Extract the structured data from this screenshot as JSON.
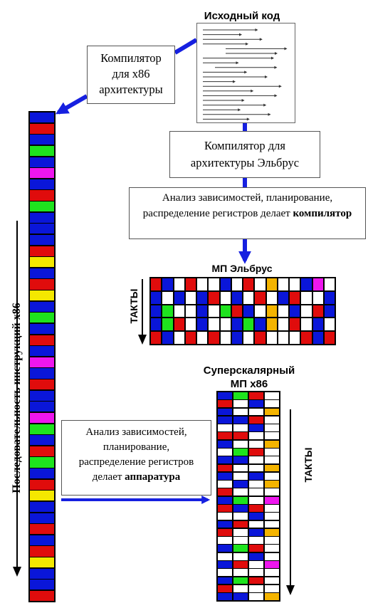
{
  "colors": {
    "blue": "#0a16d9",
    "red": "#e00c0c",
    "green": "#1ee31e",
    "magenta": "#ee16ee",
    "yellow": "#f4e800",
    "orange": "#f4b400",
    "white": "#ffffff",
    "arrow": "#1620e0"
  },
  "source": {
    "title": "Исходный код"
  },
  "x86_compiler": {
    "label": "Компилятор для x86 архитектуры"
  },
  "elbrus_compiler": {
    "label": "Компилятор для архитектуры Эльбрус"
  },
  "compiler_analysis": {
    "text": "Анализ зависимостей, планирование, распределение регистров делает",
    "bold": "компилятор"
  },
  "elbrus_mp": {
    "title": "МП Эльбрус",
    "axis_label": "ТАКТЫ",
    "grid": [
      [
        "red",
        "blue",
        "white",
        "red",
        "white",
        "white",
        "blue",
        "white",
        "red",
        "white",
        "orange",
        "white",
        "white",
        "blue",
        "magenta",
        "white"
      ],
      [
        "blue",
        "white",
        "blue",
        "white",
        "blue",
        "red",
        "white",
        "blue",
        "white",
        "red",
        "white",
        "blue",
        "red",
        "white",
        "white",
        "blue"
      ],
      [
        "blue",
        "green",
        "white",
        "white",
        "blue",
        "white",
        "green",
        "red",
        "blue",
        "white",
        "orange",
        "white",
        "blue",
        "white",
        "red",
        "blue"
      ],
      [
        "blue",
        "green",
        "red",
        "white",
        "blue",
        "white",
        "white",
        "blue",
        "green",
        "blue",
        "orange",
        "white",
        "red",
        "white",
        "blue",
        "white"
      ],
      [
        "red",
        "blue",
        "white",
        "red",
        "white",
        "red",
        "white",
        "blue",
        "white",
        "red",
        "white",
        "white",
        "white",
        "red",
        "blue",
        "red"
      ]
    ]
  },
  "x86_seq": {
    "axis_label": "Последовательность инструкций x86",
    "cells": [
      "blue",
      "red",
      "blue",
      "green",
      "blue",
      "magenta",
      "blue",
      "red",
      "green",
      "blue",
      "blue",
      "blue",
      "red",
      "yellow",
      "blue",
      "red",
      "yellow",
      "blue",
      "green",
      "blue",
      "red",
      "blue",
      "magenta",
      "blue",
      "red",
      "blue",
      "blue",
      "magenta",
      "green",
      "blue",
      "red",
      "green",
      "blue",
      "red",
      "yellow",
      "blue",
      "blue",
      "red",
      "blue",
      "red",
      "yellow",
      "blue",
      "blue",
      "red"
    ]
  },
  "superscalar": {
    "title_line1": "Суперскалярный",
    "title_line2": "МП x86",
    "axis_label": "ТАКТЫ",
    "grid": [
      [
        "blue",
        "green",
        "red",
        "white"
      ],
      [
        "red",
        "white",
        "blue",
        "white"
      ],
      [
        "blue",
        "white",
        "white",
        "orange"
      ],
      [
        "blue",
        "blue",
        "red",
        "white"
      ],
      [
        "white",
        "white",
        "blue",
        "white"
      ],
      [
        "red",
        "red",
        "white",
        "white"
      ],
      [
        "blue",
        "white",
        "white",
        "orange"
      ],
      [
        "white",
        "green",
        "red",
        "white"
      ],
      [
        "blue",
        "blue",
        "white",
        "white"
      ],
      [
        "red",
        "white",
        "white",
        "orange"
      ],
      [
        "blue",
        "white",
        "blue",
        "white"
      ],
      [
        "white",
        "blue",
        "white",
        "orange"
      ],
      [
        "red",
        "white",
        "white",
        "white"
      ],
      [
        "blue",
        "green",
        "white",
        "magenta"
      ],
      [
        "red",
        "blue",
        "red",
        "white"
      ],
      [
        "white",
        "white",
        "blue",
        "white"
      ],
      [
        "blue",
        "red",
        "white",
        "white"
      ],
      [
        "red",
        "white",
        "blue",
        "orange"
      ],
      [
        "white",
        "white",
        "white",
        "white"
      ],
      [
        "blue",
        "green",
        "red",
        "white"
      ],
      [
        "white",
        "white",
        "blue",
        "white"
      ],
      [
        "blue",
        "red",
        "white",
        "magenta"
      ],
      [
        "white",
        "white",
        "white",
        "white"
      ],
      [
        "blue",
        "green",
        "red",
        "white"
      ],
      [
        "red",
        "white",
        "white",
        "white"
      ],
      [
        "blue",
        "blue",
        "white",
        "orange"
      ]
    ]
  },
  "hardware_analysis": {
    "line1": "Анализ зависимостей,",
    "line2": "планирование,",
    "line3": "распределение регистров",
    "line4_prefix": "делает",
    "line4_bold": "аппаратура"
  }
}
